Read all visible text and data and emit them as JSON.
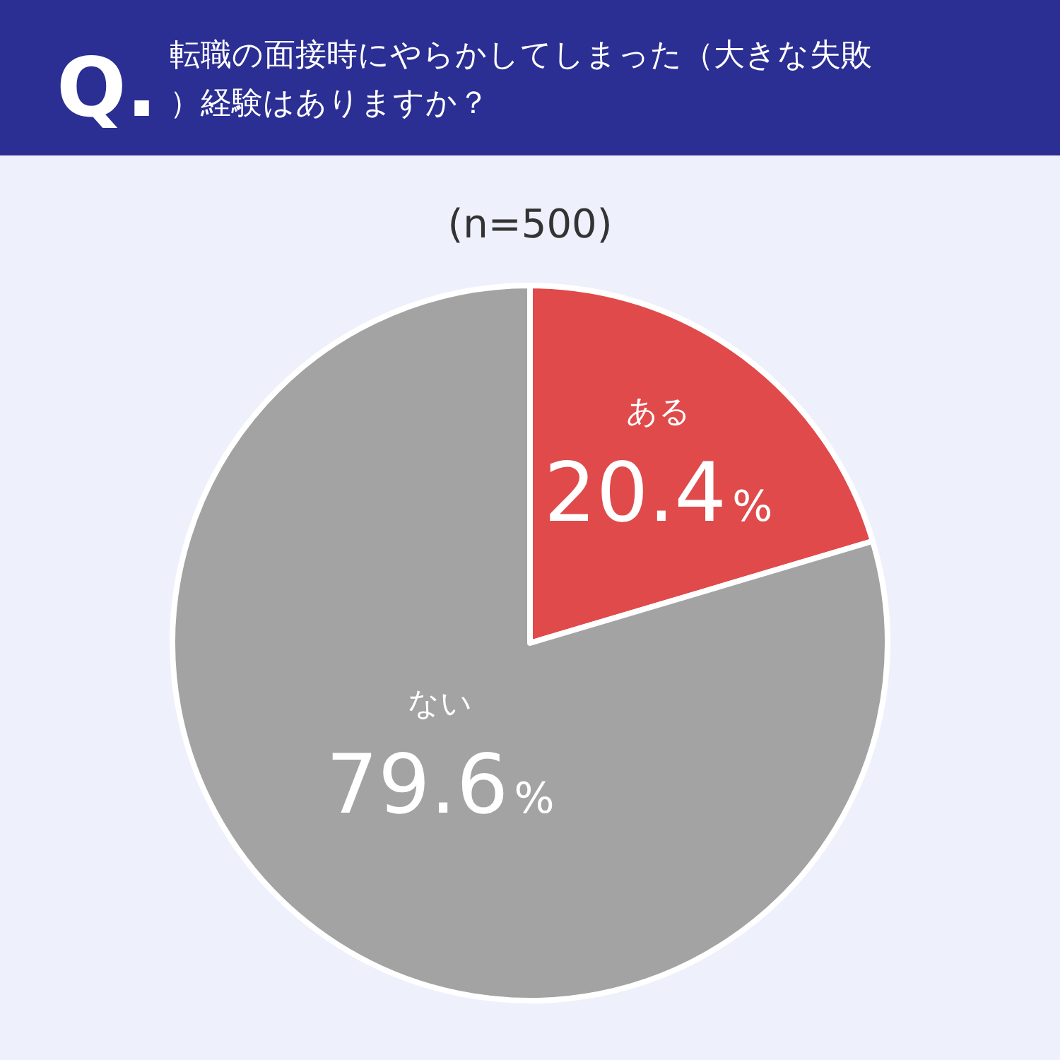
{
  "chart_data": {
    "type": "pie",
    "title": "転職の面接時にやらかしてしまった（大きな失敗）経験はありますか？",
    "subtitle": "(n=500)",
    "annotations": [
      "Q."
    ],
    "categories": [
      "ある",
      "ない"
    ],
    "values": [
      20.4,
      79.6
    ],
    "colors": [
      "#e04a4b",
      "#a3a3a3"
    ],
    "value_labels": [
      "20.4%",
      "79.6%"
    ]
  }
}
